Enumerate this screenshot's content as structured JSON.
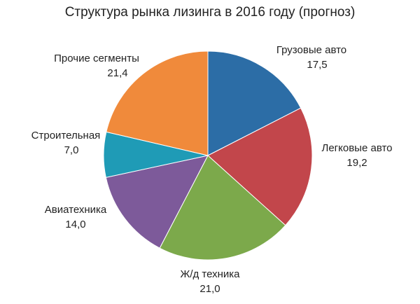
{
  "chart_data": {
    "type": "pie",
    "title": "Структура рынка лизинга в 2016 году (прогноз)",
    "categories": [
      "Грузовые авто",
      "Легковые авто",
      "Ж/д техника",
      "Авиатехника",
      "Строительная",
      "Прочие сегменты"
    ],
    "values": [
      17.5,
      19.2,
      21.0,
      14.0,
      7.0,
      21.4
    ],
    "value_labels": [
      "17,5",
      "19,2",
      "21,0",
      "14,0",
      "7,0",
      "21,4"
    ],
    "colors": [
      "#2c6da6",
      "#c2464b",
      "#7ca94b",
      "#7d5a9a",
      "#1f9bb6",
      "#f08a3b"
    ]
  }
}
